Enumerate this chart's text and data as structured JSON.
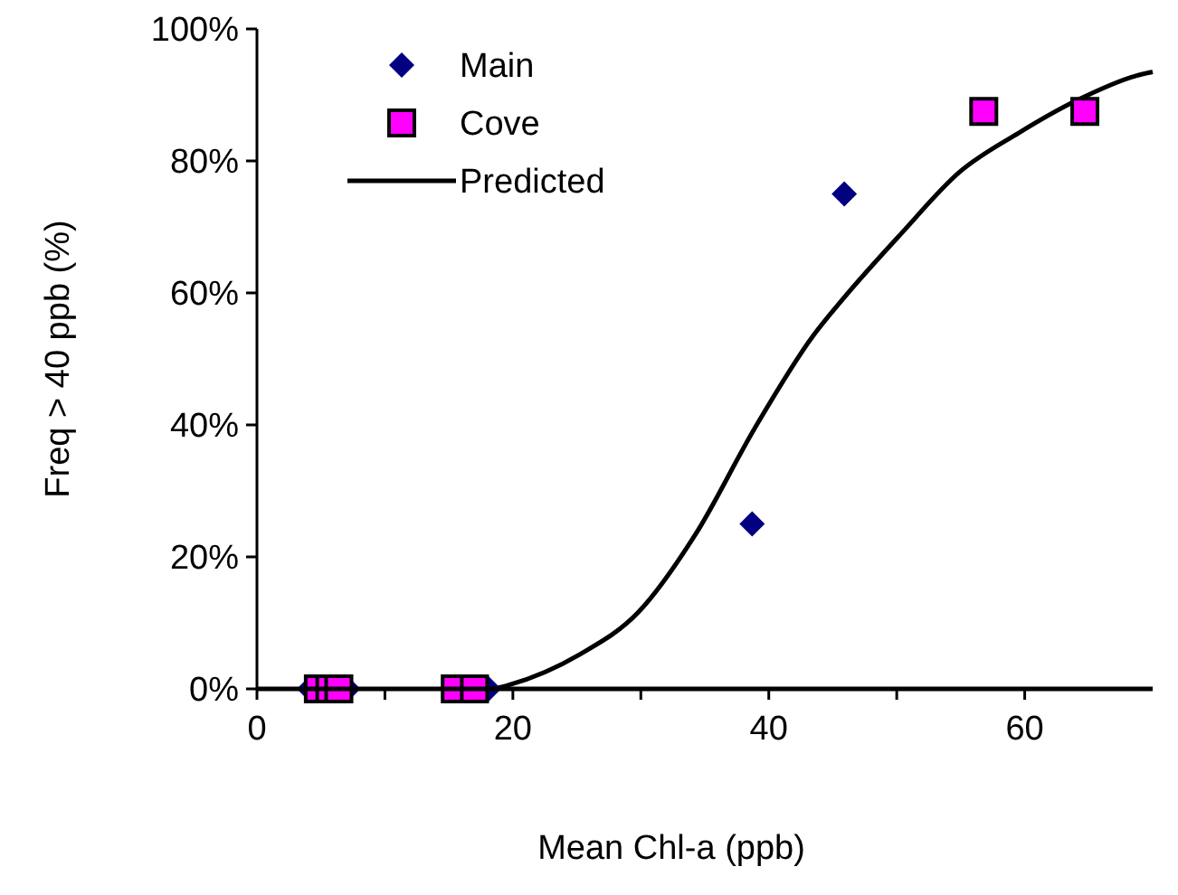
{
  "chart_data": {
    "type": "scatter",
    "xlabel": "Mean Chl-a (ppb)",
    "ylabel": "Freq > 40 ppb (%)",
    "xlim": [
      0,
      70
    ],
    "xticks": [
      0,
      {
        "value": 10,
        "label": null
      },
      20,
      {
        "value": 30,
        "label": null
      },
      40,
      {
        "value": 50,
        "label": null
      },
      60
    ],
    "ylim": [
      0,
      100
    ],
    "yticks": [
      {
        "value": 0,
        "label": "0%"
      },
      {
        "value": 20,
        "label": "20%"
      },
      {
        "value": 40,
        "label": "40%"
      },
      {
        "value": 60,
        "label": "60%"
      },
      {
        "value": 80,
        "label": "80%"
      },
      {
        "value": 100,
        "label": "100%"
      }
    ],
    "grid": false,
    "legend": "top left",
    "series": [
      {
        "name": "Main",
        "marker": "diamond",
        "color": "#000080",
        "x": [
          4.1,
          7.1,
          18.1,
          38.7,
          45.9
        ],
        "values": [
          0,
          0,
          0,
          25,
          75
        ]
      },
      {
        "name": "Cove",
        "marker": "square",
        "color": "#ff00ff",
        "x": [
          4.8,
          5.7,
          6.4,
          15.5,
          17,
          56.8,
          64.7
        ],
        "values": [
          0,
          0,
          0,
          0,
          0,
          87.5,
          87.5
        ]
      },
      {
        "name": "Predicted",
        "type": "line",
        "marker": "none",
        "line_style": "solid",
        "color": "#000000",
        "x": [
          18.5,
          19.7,
          25.2,
          29.8,
          34.3,
          38.9,
          43.5,
          45.8,
          50.4,
          54.9,
          59.5,
          64.1,
          68.7,
          70
        ],
        "values": [
          0,
          0.6,
          5.2,
          11.6,
          23.5,
          39.5,
          53.6,
          59.1,
          69.1,
          78.3,
          84.2,
          89.2,
          92.9,
          93.5
        ]
      }
    ]
  }
}
